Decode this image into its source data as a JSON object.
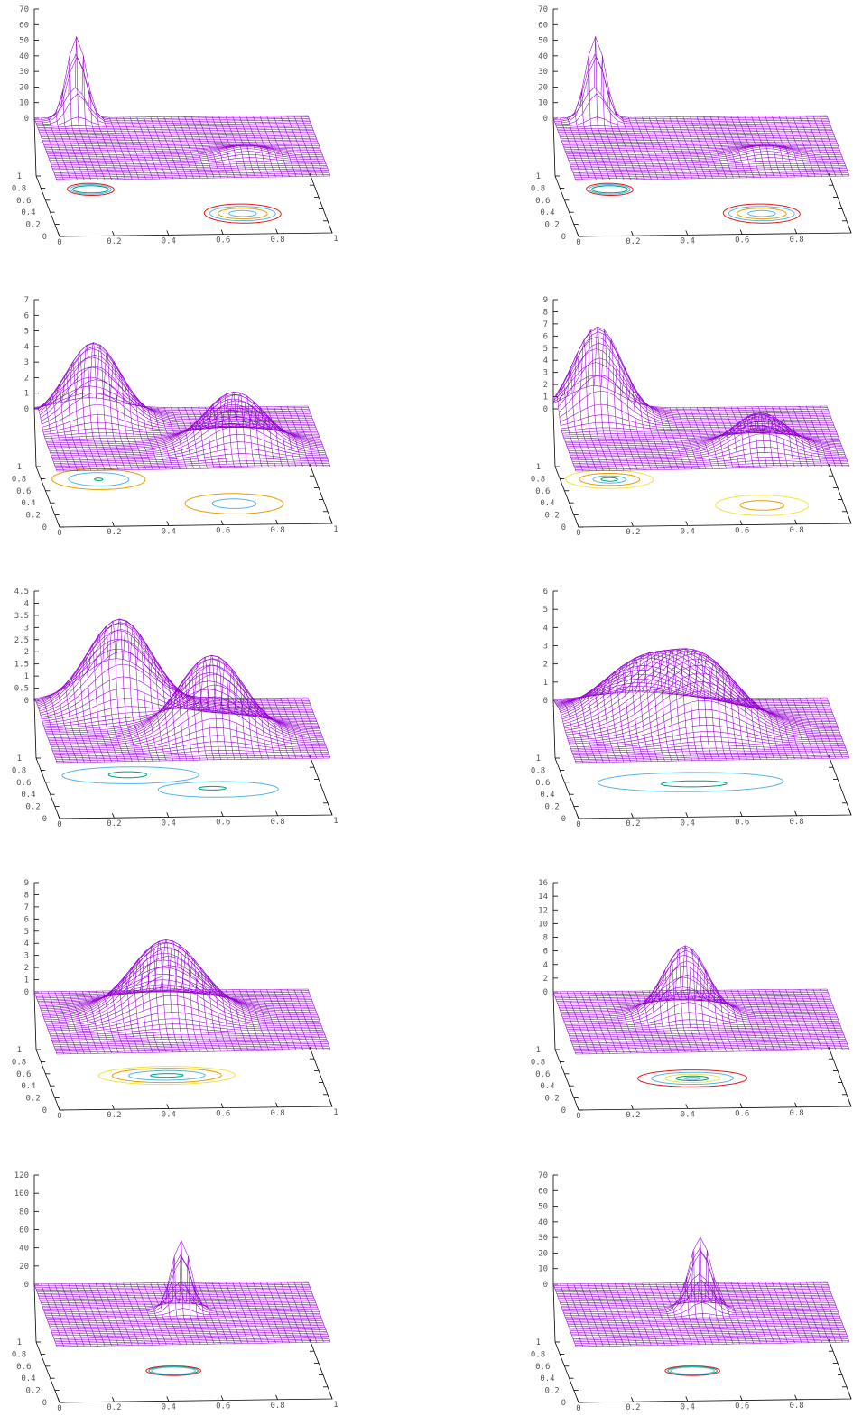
{
  "figure": {
    "mesh_color": "#9400d3",
    "contour_colors": [
      "#e41a1c",
      "#56b4e9",
      "#e69f00",
      "#009e73",
      "#f0e442"
    ]
  },
  "chart_data": [
    {
      "type": "surface",
      "z_ticks": [
        "70",
        "60",
        "50",
        "40",
        "30",
        "20",
        "10",
        "0"
      ],
      "zlim": [
        0,
        70
      ],
      "x_ticks": [
        "0",
        "0.2",
        "0.4",
        "0.6",
        "0.8",
        "1"
      ],
      "y_ticks": [
        "0",
        "0.2",
        "0.4",
        "0.6",
        "0.8",
        "1"
      ],
      "peaks": [
        {
          "x": 0.15,
          "y": 0.95,
          "height": 54,
          "sigma": 0.035
        },
        {
          "x": 0.72,
          "y": 0.35,
          "height": 6,
          "sigma": 0.08
        }
      ],
      "contours": [
        {
          "cx": 0.18,
          "cy": 0.77,
          "rx": 0.085,
          "ry": 0.1,
          "color": "#e41a1c"
        },
        {
          "cx": 0.18,
          "cy": 0.77,
          "rx": 0.075,
          "ry": 0.08,
          "color": "#56b4e9"
        },
        {
          "cx": 0.18,
          "cy": 0.77,
          "rx": 0.065,
          "ry": 0.06,
          "color": "#009e73"
        },
        {
          "cx": 0.7,
          "cy": 0.34,
          "rx": 0.14,
          "ry": 0.16,
          "color": "#e41a1c"
        },
        {
          "cx": 0.7,
          "cy": 0.34,
          "rx": 0.12,
          "ry": 0.12,
          "color": "#56b4e9"
        },
        {
          "cx": 0.7,
          "cy": 0.34,
          "rx": 0.09,
          "ry": 0.09,
          "color": "#e69f00"
        },
        {
          "cx": 0.7,
          "cy": 0.34,
          "rx": 0.05,
          "ry": 0.05,
          "color": "#56b4e9"
        }
      ]
    },
    {
      "type": "surface",
      "z_ticks": [
        "70",
        "60",
        "50",
        "40",
        "30",
        "20",
        "10",
        "0"
      ],
      "zlim": [
        0,
        70
      ],
      "x_ticks": [
        "0",
        "0.2",
        "0.4",
        "0.6",
        "0.8",
        "1"
      ],
      "y_ticks": [
        "0",
        "0.2",
        "0.4",
        "0.6",
        "0.8",
        "1"
      ],
      "peaks": [
        {
          "x": 0.15,
          "y": 0.95,
          "height": 54,
          "sigma": 0.035
        },
        {
          "x": 0.72,
          "y": 0.35,
          "height": 6,
          "sigma": 0.08
        }
      ],
      "contours": [
        {
          "cx": 0.18,
          "cy": 0.77,
          "rx": 0.085,
          "ry": 0.1,
          "color": "#e41a1c"
        },
        {
          "cx": 0.18,
          "cy": 0.77,
          "rx": 0.075,
          "ry": 0.08,
          "color": "#56b4e9"
        },
        {
          "cx": 0.18,
          "cy": 0.77,
          "rx": 0.065,
          "ry": 0.06,
          "color": "#009e73"
        },
        {
          "cx": 0.7,
          "cy": 0.34,
          "rx": 0.14,
          "ry": 0.16,
          "color": "#e41a1c"
        },
        {
          "cx": 0.7,
          "cy": 0.34,
          "rx": 0.12,
          "ry": 0.12,
          "color": "#56b4e9"
        },
        {
          "cx": 0.7,
          "cy": 0.34,
          "rx": 0.09,
          "ry": 0.09,
          "color": "#e69f00"
        },
        {
          "cx": 0.7,
          "cy": 0.34,
          "rx": 0.05,
          "ry": 0.05,
          "color": "#56b4e9"
        }
      ]
    },
    {
      "type": "surface",
      "z_ticks": [
        "7",
        "6",
        "5",
        "4",
        "3",
        "2",
        "1",
        "0"
      ],
      "zlim": [
        0,
        7
      ],
      "x_ticks": [
        "0",
        "0.2",
        "0.4",
        "0.6",
        "0.8",
        "1"
      ],
      "y_ticks": [
        "0",
        "0.2",
        "0.4",
        "0.6",
        "0.8",
        "1"
      ],
      "peaks": [
        {
          "x": 0.2,
          "y": 0.8,
          "height": 5,
          "sigma": 0.1
        },
        {
          "x": 0.68,
          "y": 0.35,
          "height": 3.5,
          "sigma": 0.11
        }
      ],
      "contours": [
        {
          "cx": 0.21,
          "cy": 0.78,
          "rx": 0.17,
          "ry": 0.17,
          "color": "#e69f00"
        },
        {
          "cx": 0.21,
          "cy": 0.78,
          "rx": 0.11,
          "ry": 0.11,
          "color": "#56b4e9"
        },
        {
          "cx": 0.21,
          "cy": 0.78,
          "rx": 0.015,
          "ry": 0.02,
          "color": "#009e73"
        },
        {
          "cx": 0.67,
          "cy": 0.35,
          "rx": 0.18,
          "ry": 0.17,
          "color": "#e69f00"
        },
        {
          "cx": 0.67,
          "cy": 0.35,
          "rx": 0.08,
          "ry": 0.08,
          "color": "#56b4e9"
        }
      ]
    },
    {
      "type": "surface",
      "z_ticks": [
        "9",
        "8",
        "7",
        "6",
        "5",
        "4",
        "3",
        "2",
        "1",
        "0"
      ],
      "zlim": [
        0,
        9
      ],
      "x_ticks": [
        "0",
        "0.2",
        "0.4",
        "0.6",
        "0.8",
        "1"
      ],
      "y_ticks": [
        "0",
        "0.2",
        "0.4",
        "0.6",
        "0.8",
        "1"
      ],
      "peaks": [
        {
          "x": 0.15,
          "y": 0.85,
          "height": 7.5,
          "sigma": 0.09
        },
        {
          "x": 0.7,
          "y": 0.3,
          "height": 3,
          "sigma": 0.1
        }
      ],
      "contours": [
        {
          "cx": 0.18,
          "cy": 0.78,
          "rx": 0.16,
          "ry": 0.15,
          "color": "#f0e442"
        },
        {
          "cx": 0.18,
          "cy": 0.78,
          "rx": 0.11,
          "ry": 0.1,
          "color": "#e69f00"
        },
        {
          "cx": 0.18,
          "cy": 0.78,
          "rx": 0.06,
          "ry": 0.06,
          "color": "#56b4e9"
        },
        {
          "cx": 0.18,
          "cy": 0.78,
          "rx": 0.03,
          "ry": 0.03,
          "color": "#009e73"
        },
        {
          "cx": 0.7,
          "cy": 0.32,
          "rx": 0.17,
          "ry": 0.17,
          "color": "#f0e442"
        },
        {
          "cx": 0.7,
          "cy": 0.32,
          "rx": 0.08,
          "ry": 0.08,
          "color": "#e69f00"
        }
      ]
    },
    {
      "type": "surface",
      "z_ticks": [
        "4.5",
        "4",
        "3.5",
        "3",
        "2.5",
        "2",
        "1.5",
        "1",
        "0.5",
        "0"
      ],
      "zlim": [
        0,
        4.5
      ],
      "x_ticks": [
        "0",
        "0.2",
        "0.4",
        "0.6",
        "0.8",
        "1"
      ],
      "y_ticks": [
        "0",
        "0.2",
        "0.4",
        "0.6",
        "0.8",
        "1"
      ],
      "peaks": [
        {
          "x": 0.3,
          "y": 0.85,
          "height": 3.7,
          "sigma": 0.12
        },
        {
          "x": 0.6,
          "y": 0.4,
          "height": 3.3,
          "sigma": 0.12
        }
      ],
      "contours": [
        {
          "cx": 0.32,
          "cy": 0.7,
          "rx": 0.25,
          "ry": 0.14,
          "color": "#56b4e9"
        },
        {
          "cx": 0.62,
          "cy": 0.45,
          "rx": 0.22,
          "ry": 0.13,
          "color": "#56b4e9"
        },
        {
          "cx": 0.31,
          "cy": 0.71,
          "rx": 0.07,
          "ry": 0.05,
          "color": "#009e73"
        },
        {
          "cx": 0.6,
          "cy": 0.47,
          "rx": 0.05,
          "ry": 0.03,
          "color": "#009e73"
        }
      ]
    },
    {
      "type": "surface",
      "z_ticks": [
        "6",
        "5",
        "4",
        "3",
        "2",
        "1",
        "0"
      ],
      "zlim": [
        0,
        6
      ],
      "x_ticks": [
        "0",
        "0.2",
        "0.4",
        "0.6",
        "0.8",
        "1"
      ],
      "y_ticks": [
        "0",
        "0.2",
        "0.4",
        "0.6",
        "0.8",
        "1"
      ],
      "peaks": [
        {
          "x": 0.3,
          "y": 0.7,
          "height": 3,
          "sigma": 0.15
        },
        {
          "x": 0.5,
          "y": 0.5,
          "height": 3.6,
          "sigma": 0.14
        }
      ],
      "contours": [
        {
          "cx": 0.46,
          "cy": 0.58,
          "rx": 0.34,
          "ry": 0.16,
          "color": "#56b4e9"
        },
        {
          "cx": 0.47,
          "cy": 0.55,
          "rx": 0.12,
          "ry": 0.05,
          "color": "#009e73"
        }
      ]
    },
    {
      "type": "surface",
      "z_ticks": [
        "9",
        "8",
        "7",
        "6",
        "5",
        "4",
        "3",
        "2",
        "1",
        "0"
      ],
      "zlim": [
        0,
        9
      ],
      "x_ticks": [
        "0",
        "0.2",
        "0.4",
        "0.6",
        "0.8",
        "1"
      ],
      "y_ticks": [
        "0",
        "0.2",
        "0.4",
        "0.6",
        "0.8",
        "1"
      ],
      "peaks": [
        {
          "x": 0.45,
          "y": 0.6,
          "height": 6.2,
          "sigma": 0.13
        }
      ],
      "contours": [
        {
          "cx": 0.44,
          "cy": 0.55,
          "rx": 0.25,
          "ry": 0.15,
          "color": "#f0e442"
        },
        {
          "cx": 0.44,
          "cy": 0.55,
          "rx": 0.2,
          "ry": 0.12,
          "color": "#e69f00"
        },
        {
          "cx": 0.44,
          "cy": 0.55,
          "rx": 0.14,
          "ry": 0.08,
          "color": "#56b4e9"
        },
        {
          "cx": 0.44,
          "cy": 0.55,
          "rx": 0.06,
          "ry": 0.03,
          "color": "#009e73"
        }
      ]
    },
    {
      "type": "surface",
      "z_ticks": [
        "16",
        "14",
        "12",
        "10",
        "8",
        "6",
        "4",
        "2",
        "0"
      ],
      "zlim": [
        0,
        16
      ],
      "x_ticks": [
        "0",
        "0.2",
        "0.4",
        "0.6",
        "0.8",
        "1"
      ],
      "y_ticks": [
        "0",
        "0.2",
        "0.4",
        "0.6",
        "0.8",
        "1"
      ],
      "peaks": [
        {
          "x": 0.45,
          "y": 0.6,
          "height": 10.2,
          "sigma": 0.08
        }
      ],
      "contours": [
        {
          "cx": 0.46,
          "cy": 0.5,
          "rx": 0.2,
          "ry": 0.14,
          "color": "#e41a1c"
        },
        {
          "cx": 0.46,
          "cy": 0.5,
          "rx": 0.15,
          "ry": 0.1,
          "color": "#56b4e9"
        },
        {
          "cx": 0.46,
          "cy": 0.5,
          "rx": 0.1,
          "ry": 0.07,
          "color": "#f0e442"
        },
        {
          "cx": 0.46,
          "cy": 0.5,
          "rx": 0.06,
          "ry": 0.04,
          "color": "#009e73"
        },
        {
          "cx": 0.46,
          "cy": 0.5,
          "rx": 0.03,
          "ry": 0.02,
          "color": "#56b4e9"
        }
      ]
    },
    {
      "type": "surface",
      "z_ticks": [
        "120",
        "100",
        "80",
        "60",
        "40",
        "20",
        "0"
      ],
      "zlim": [
        0,
        120
      ],
      "x_ticks": [
        "0",
        "0.2",
        "0.4",
        "0.6",
        "0.8",
        "1"
      ],
      "y_ticks": [
        "0",
        "0.2",
        "0.4",
        "0.6",
        "0.8",
        "1"
      ],
      "peaks": [
        {
          "x": 0.5,
          "y": 0.55,
          "height": 77,
          "sigma": 0.035
        }
      ],
      "contours": [
        {
          "cx": 0.46,
          "cy": 0.5,
          "rx": 0.1,
          "ry": 0.08,
          "color": "#e41a1c"
        },
        {
          "cx": 0.46,
          "cy": 0.5,
          "rx": 0.09,
          "ry": 0.07,
          "color": "#009e73"
        },
        {
          "cx": 0.46,
          "cy": 0.5,
          "rx": 0.08,
          "ry": 0.06,
          "color": "#56b4e9"
        }
      ]
    },
    {
      "type": "surface",
      "z_ticks": [
        "70",
        "60",
        "50",
        "40",
        "30",
        "20",
        "10",
        "0"
      ],
      "zlim": [
        0,
        70
      ],
      "x_ticks": [
        "0",
        "0.2",
        "0.4",
        "0.6",
        "0.8",
        "1"
      ],
      "y_ticks": [
        "0",
        "0.2",
        "0.4",
        "0.6",
        "0.8",
        "1"
      ],
      "peaks": [
        {
          "x": 0.5,
          "y": 0.55,
          "height": 47,
          "sigma": 0.04
        }
      ],
      "contours": [
        {
          "cx": 0.46,
          "cy": 0.5,
          "rx": 0.1,
          "ry": 0.08,
          "color": "#e41a1c"
        },
        {
          "cx": 0.46,
          "cy": 0.5,
          "rx": 0.09,
          "ry": 0.07,
          "color": "#009e73"
        },
        {
          "cx": 0.46,
          "cy": 0.5,
          "rx": 0.08,
          "ry": 0.06,
          "color": "#56b4e9"
        }
      ]
    }
  ]
}
